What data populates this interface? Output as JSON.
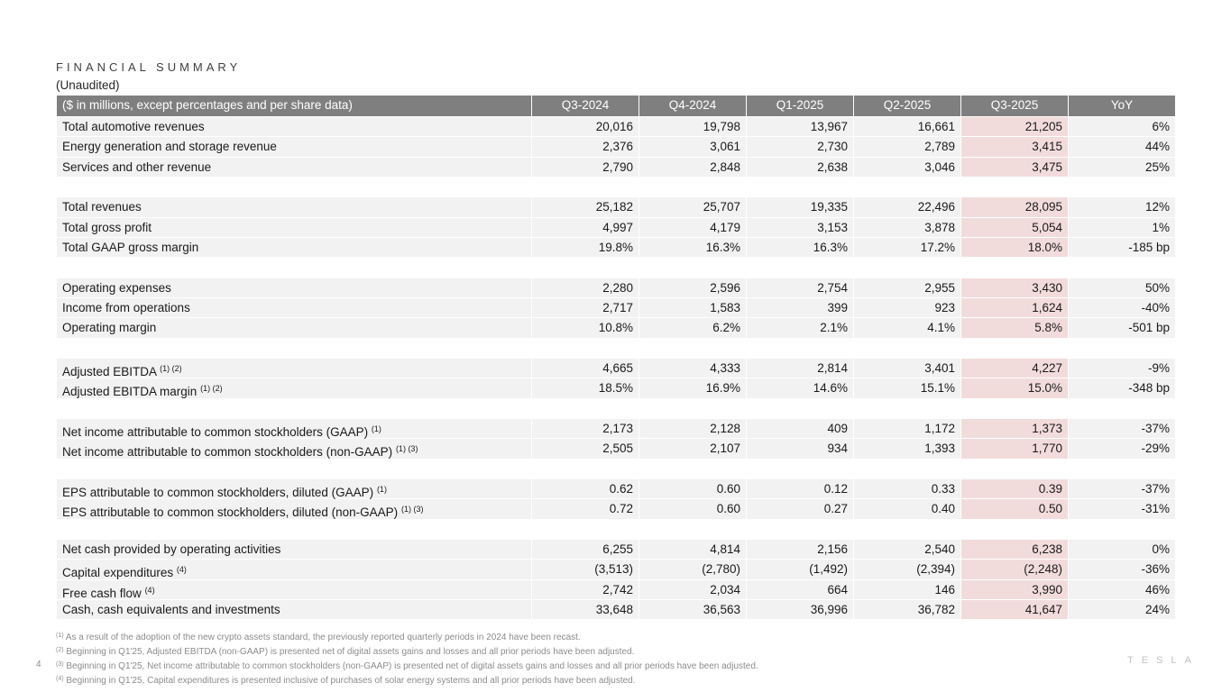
{
  "header": {
    "title": "FINANCIAL SUMMARY",
    "subtitle": "(Unaudited)"
  },
  "table": {
    "columns": [
      "($ in millions, except percentages and per share data)",
      "Q3-2024",
      "Q4-2024",
      "Q1-2025",
      "Q2-2025",
      "Q3-2025",
      "YoY"
    ],
    "groups": [
      [
        {
          "label": "Total automotive revenues",
          "values": [
            "20,016",
            "19,798",
            "13,967",
            "16,661",
            "21,205",
            "6%"
          ]
        },
        {
          "label": "Energy generation and storage revenue",
          "values": [
            "2,376",
            "3,061",
            "2,730",
            "2,789",
            "3,415",
            "44%"
          ]
        },
        {
          "label": "Services and other revenue",
          "values": [
            "2,790",
            "2,848",
            "2,638",
            "3,046",
            "3,475",
            "25%"
          ]
        }
      ],
      [
        {
          "label": "Total revenues",
          "values": [
            "25,182",
            "25,707",
            "19,335",
            "22,496",
            "28,095",
            "12%"
          ]
        },
        {
          "label": "Total gross profit",
          "values": [
            "4,997",
            "4,179",
            "3,153",
            "3,878",
            "5,054",
            "1%"
          ]
        },
        {
          "label": "Total GAAP gross margin",
          "values": [
            "19.8%",
            "16.3%",
            "16.3%",
            "17.2%",
            "18.0%",
            "-185 bp"
          ]
        }
      ],
      [
        {
          "label": "Operating expenses",
          "values": [
            "2,280",
            "2,596",
            "2,754",
            "2,955",
            "3,430",
            "50%"
          ]
        },
        {
          "label": "Income from operations",
          "values": [
            "2,717",
            "1,583",
            "399",
            "923",
            "1,624",
            "-40%"
          ]
        },
        {
          "label": "Operating margin",
          "values": [
            "10.8%",
            "6.2%",
            "2.1%",
            "4.1%",
            "5.8%",
            "-501 bp"
          ]
        }
      ],
      [
        {
          "label": "Adjusted EBITDA",
          "sup": "(1) (2)",
          "values": [
            "4,665",
            "4,333",
            "2,814",
            "3,401",
            "4,227",
            "-9%"
          ]
        },
        {
          "label": "Adjusted EBITDA margin",
          "sup": "(1) (2)",
          "values": [
            "18.5%",
            "16.9%",
            "14.6%",
            "15.1%",
            "15.0%",
            "-348 bp"
          ]
        }
      ],
      [
        {
          "label": "Net income attributable to common stockholders (GAAP)",
          "sup": "(1)",
          "values": [
            "2,173",
            "2,128",
            "409",
            "1,172",
            "1,373",
            "-37%"
          ]
        },
        {
          "label": "Net income attributable to common stockholders (non-GAAP)",
          "sup": "(1) (3)",
          "values": [
            "2,505",
            "2,107",
            "934",
            "1,393",
            "1,770",
            "-29%"
          ]
        }
      ],
      [
        {
          "label": "EPS attributable to common stockholders, diluted (GAAP)",
          "sup": "(1)",
          "values": [
            "0.62",
            "0.60",
            "0.12",
            "0.33",
            "0.39",
            "-37%"
          ]
        },
        {
          "label": "EPS attributable to common stockholders, diluted (non-GAAP)",
          "sup": "(1) (3)",
          "values": [
            "0.72",
            "0.60",
            "0.27",
            "0.40",
            "0.50",
            "-31%"
          ]
        }
      ],
      [
        {
          "label": "Net cash provided by operating activities",
          "values": [
            "6,255",
            "4,814",
            "2,156",
            "2,540",
            "6,238",
            "0%"
          ]
        },
        {
          "label": "Capital expenditures",
          "sup": "(4)",
          "values": [
            "(3,513)",
            "(2,780)",
            "(1,492)",
            "(2,394)",
            "(2,248)",
            "-36%"
          ]
        },
        {
          "label": "Free cash flow",
          "sup": "(4)",
          "values": [
            "2,742",
            "2,034",
            "664",
            "146",
            "3,990",
            "46%"
          ]
        },
        {
          "label": "Cash, cash equivalents and investments",
          "values": [
            "33,648",
            "36,563",
            "36,996",
            "36,782",
            "41,647",
            "24%"
          ]
        }
      ]
    ]
  },
  "footnotes": [
    {
      "marker": "(1)",
      "text": "As a result of the adoption of the new crypto assets standard, the previously reported quarterly periods in 2024 have been recast."
    },
    {
      "marker": "(2)",
      "text": "Beginning in Q1'25, Adjusted EBITDA (non-GAAP) is presented net of digital assets gains and losses and all prior periods have been adjusted."
    },
    {
      "marker": "(3)",
      "text": "Beginning in Q1'25, Net income attributable to common stockholders (non-GAAP) is presented net of digital assets gains and losses and all prior periods have been adjusted."
    },
    {
      "marker": "(4)",
      "text": "Beginning in Q1'25, Capital expenditures is presented inclusive of purchases of solar energy systems and all prior periods have been adjusted."
    }
  ],
  "page_number": "4",
  "logo": "TESLA"
}
